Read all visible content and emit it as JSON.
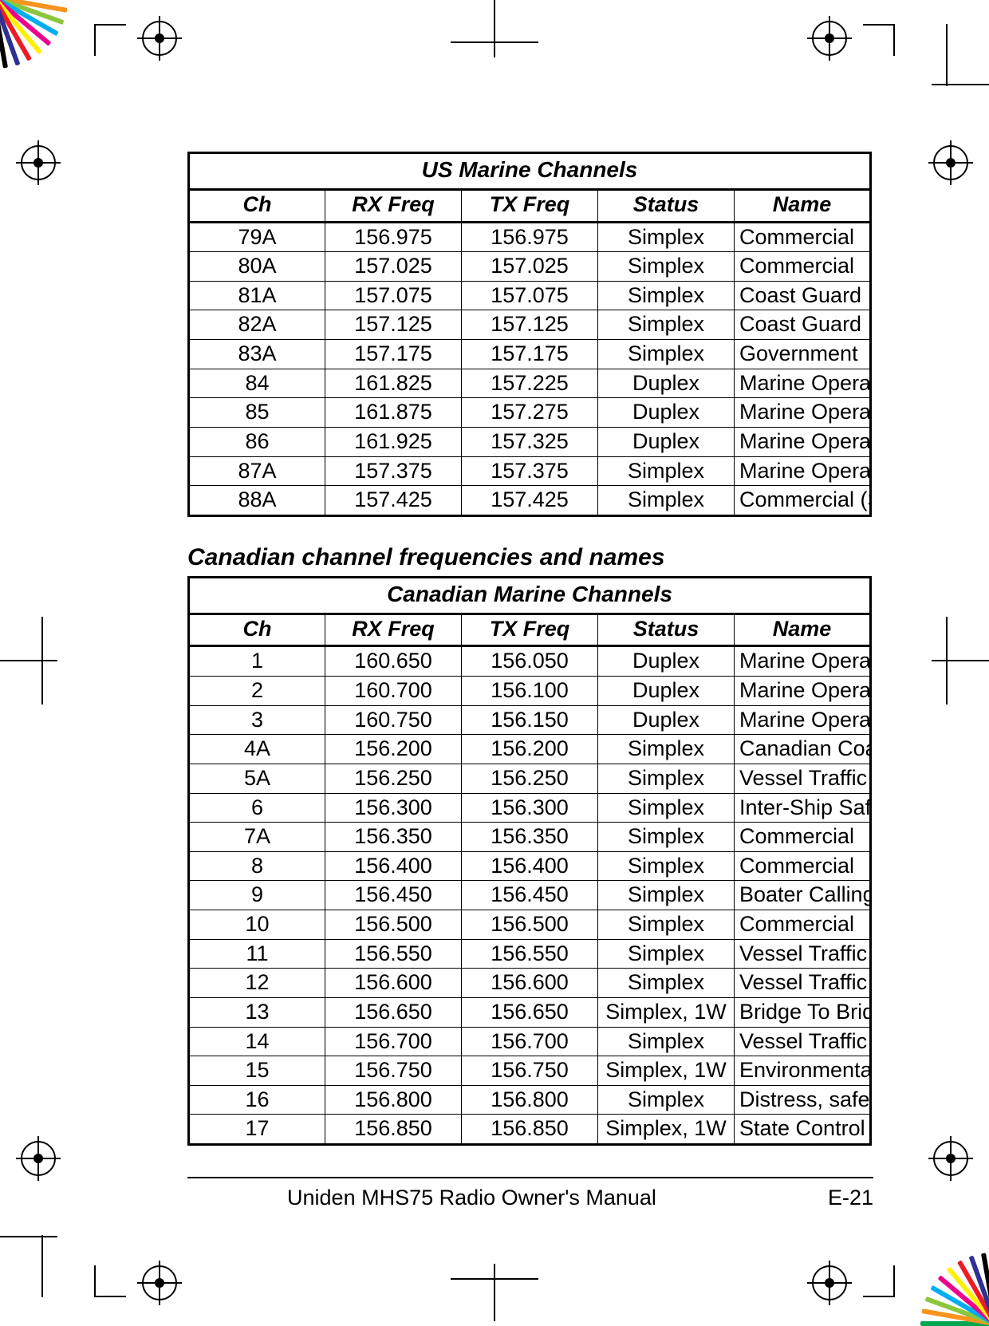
{
  "radialColors": [
    "#00a651",
    "#f7941d",
    "#8cc63f",
    "#00aeef",
    "#ec008c",
    "#fff200",
    "#ed1c24",
    "#2e3192",
    "#000000"
  ],
  "usTable": {
    "title": "US Marine Channels",
    "columns": [
      "Ch",
      "RX Freq",
      "TX Freq",
      "Status",
      "Name"
    ],
    "rows": [
      [
        "79A",
        "156.975",
        "156.975",
        "Simplex",
        "Commercial"
      ],
      [
        "80A",
        "157.025",
        "157.025",
        "Simplex",
        "Commercial"
      ],
      [
        "81A",
        "157.075",
        "157.075",
        "Simplex",
        "Coast Guard"
      ],
      [
        "82A",
        "157.125",
        "157.125",
        "Simplex",
        "Coast Guard"
      ],
      [
        "83A",
        "157.175",
        "157.175",
        "Simplex",
        "Government"
      ],
      [
        "84",
        "161.825",
        "157.225",
        "Duplex",
        "Marine Operator"
      ],
      [
        "85",
        "161.875",
        "157.275",
        "Duplex",
        "Marine Operator"
      ],
      [
        "86",
        "161.925",
        "157.325",
        "Duplex",
        "Marine Operator"
      ],
      [
        "87A",
        "157.375",
        "157.375",
        "Simplex",
        "Marine Operator"
      ],
      [
        "88A",
        "157.425",
        "157.425",
        "Simplex",
        "Commercial (Ship-Ship)"
      ]
    ]
  },
  "canadianHeading": "Canadian channel frequencies and names",
  "caTable": {
    "title": "Canadian Marine Channels",
    "columns": [
      "Ch",
      "RX Freq",
      "TX Freq",
      "Status",
      "Name"
    ],
    "rows": [
      [
        "1",
        "160.650",
        "156.050",
        "Duplex",
        "Marine Operator"
      ],
      [
        "2",
        "160.700",
        "156.100",
        "Duplex",
        "Marine Operator"
      ],
      [
        "3",
        "160.750",
        "156.150",
        "Duplex",
        "Marine Operator"
      ],
      [
        "4A",
        "156.200",
        "156.200",
        "Simplex",
        "Canadian Coast Guard"
      ],
      [
        "5A",
        "156.250",
        "156.250",
        "Simplex",
        "Vessel Traffic System"
      ],
      [
        "6",
        "156.300",
        "156.300",
        "Simplex",
        "Inter-Ship Safety"
      ],
      [
        "7A",
        "156.350",
        "156.350",
        "Simplex",
        "Commercial"
      ],
      [
        "8",
        "156.400",
        "156.400",
        "Simplex",
        "Commercial"
      ],
      [
        "9",
        "156.450",
        "156.450",
        "Simplex",
        "Boater Calling Channel"
      ],
      [
        "10",
        "156.500",
        "156.500",
        "Simplex",
        "Commercial"
      ],
      [
        "11",
        "156.550",
        "156.550",
        "Simplex",
        "Vessel Traffic System"
      ],
      [
        "12",
        "156.600",
        "156.600",
        "Simplex",
        "Vessel Traffic System"
      ],
      [
        "13",
        "156.650",
        "156.650",
        "Simplex, 1W",
        "Bridge To Bridge"
      ],
      [
        "14",
        "156.700",
        "156.700",
        "Simplex",
        "Vessel Traffic System"
      ],
      [
        "15",
        "156.750",
        "156.750",
        "Simplex, 1W",
        "Environmental"
      ],
      [
        "16",
        "156.800",
        "156.800",
        "Simplex",
        "Distress, safety, calling"
      ],
      [
        "17",
        "156.850",
        "156.850",
        "Simplex, 1W",
        "State Control"
      ]
    ]
  },
  "footer": {
    "manual": "Uniden MHS75 Radio Owner's Manual",
    "page": "E-21"
  }
}
